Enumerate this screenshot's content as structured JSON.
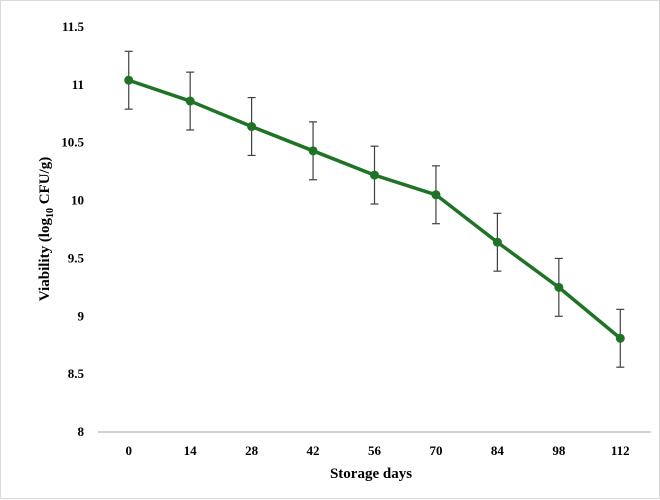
{
  "chart_data": {
    "type": "line",
    "xlabel": "Storage days",
    "ylabel": {
      "prefix": "Viability  (log",
      "subscript": "10",
      "suffix": " CFU/g)"
    },
    "x": [
      0,
      14,
      28,
      42,
      56,
      70,
      84,
      98,
      112
    ],
    "ylim": [
      8,
      11.5
    ],
    "yticks": [
      8,
      8.5,
      9,
      9.5,
      10,
      10.5,
      11,
      11.5
    ],
    "series": [
      {
        "values": [
          11.04,
          10.86,
          10.64,
          10.43,
          10.22,
          10.05,
          9.64,
          9.25,
          8.81
        ],
        "errors": [
          0.25,
          0.25,
          0.25,
          0.25,
          0.25,
          0.25,
          0.25,
          0.25,
          0.25
        ],
        "color": "#1e7325"
      }
    ],
    "grid": false,
    "error_bar_color": "#404040",
    "axis_color": "#a6a6a6"
  }
}
